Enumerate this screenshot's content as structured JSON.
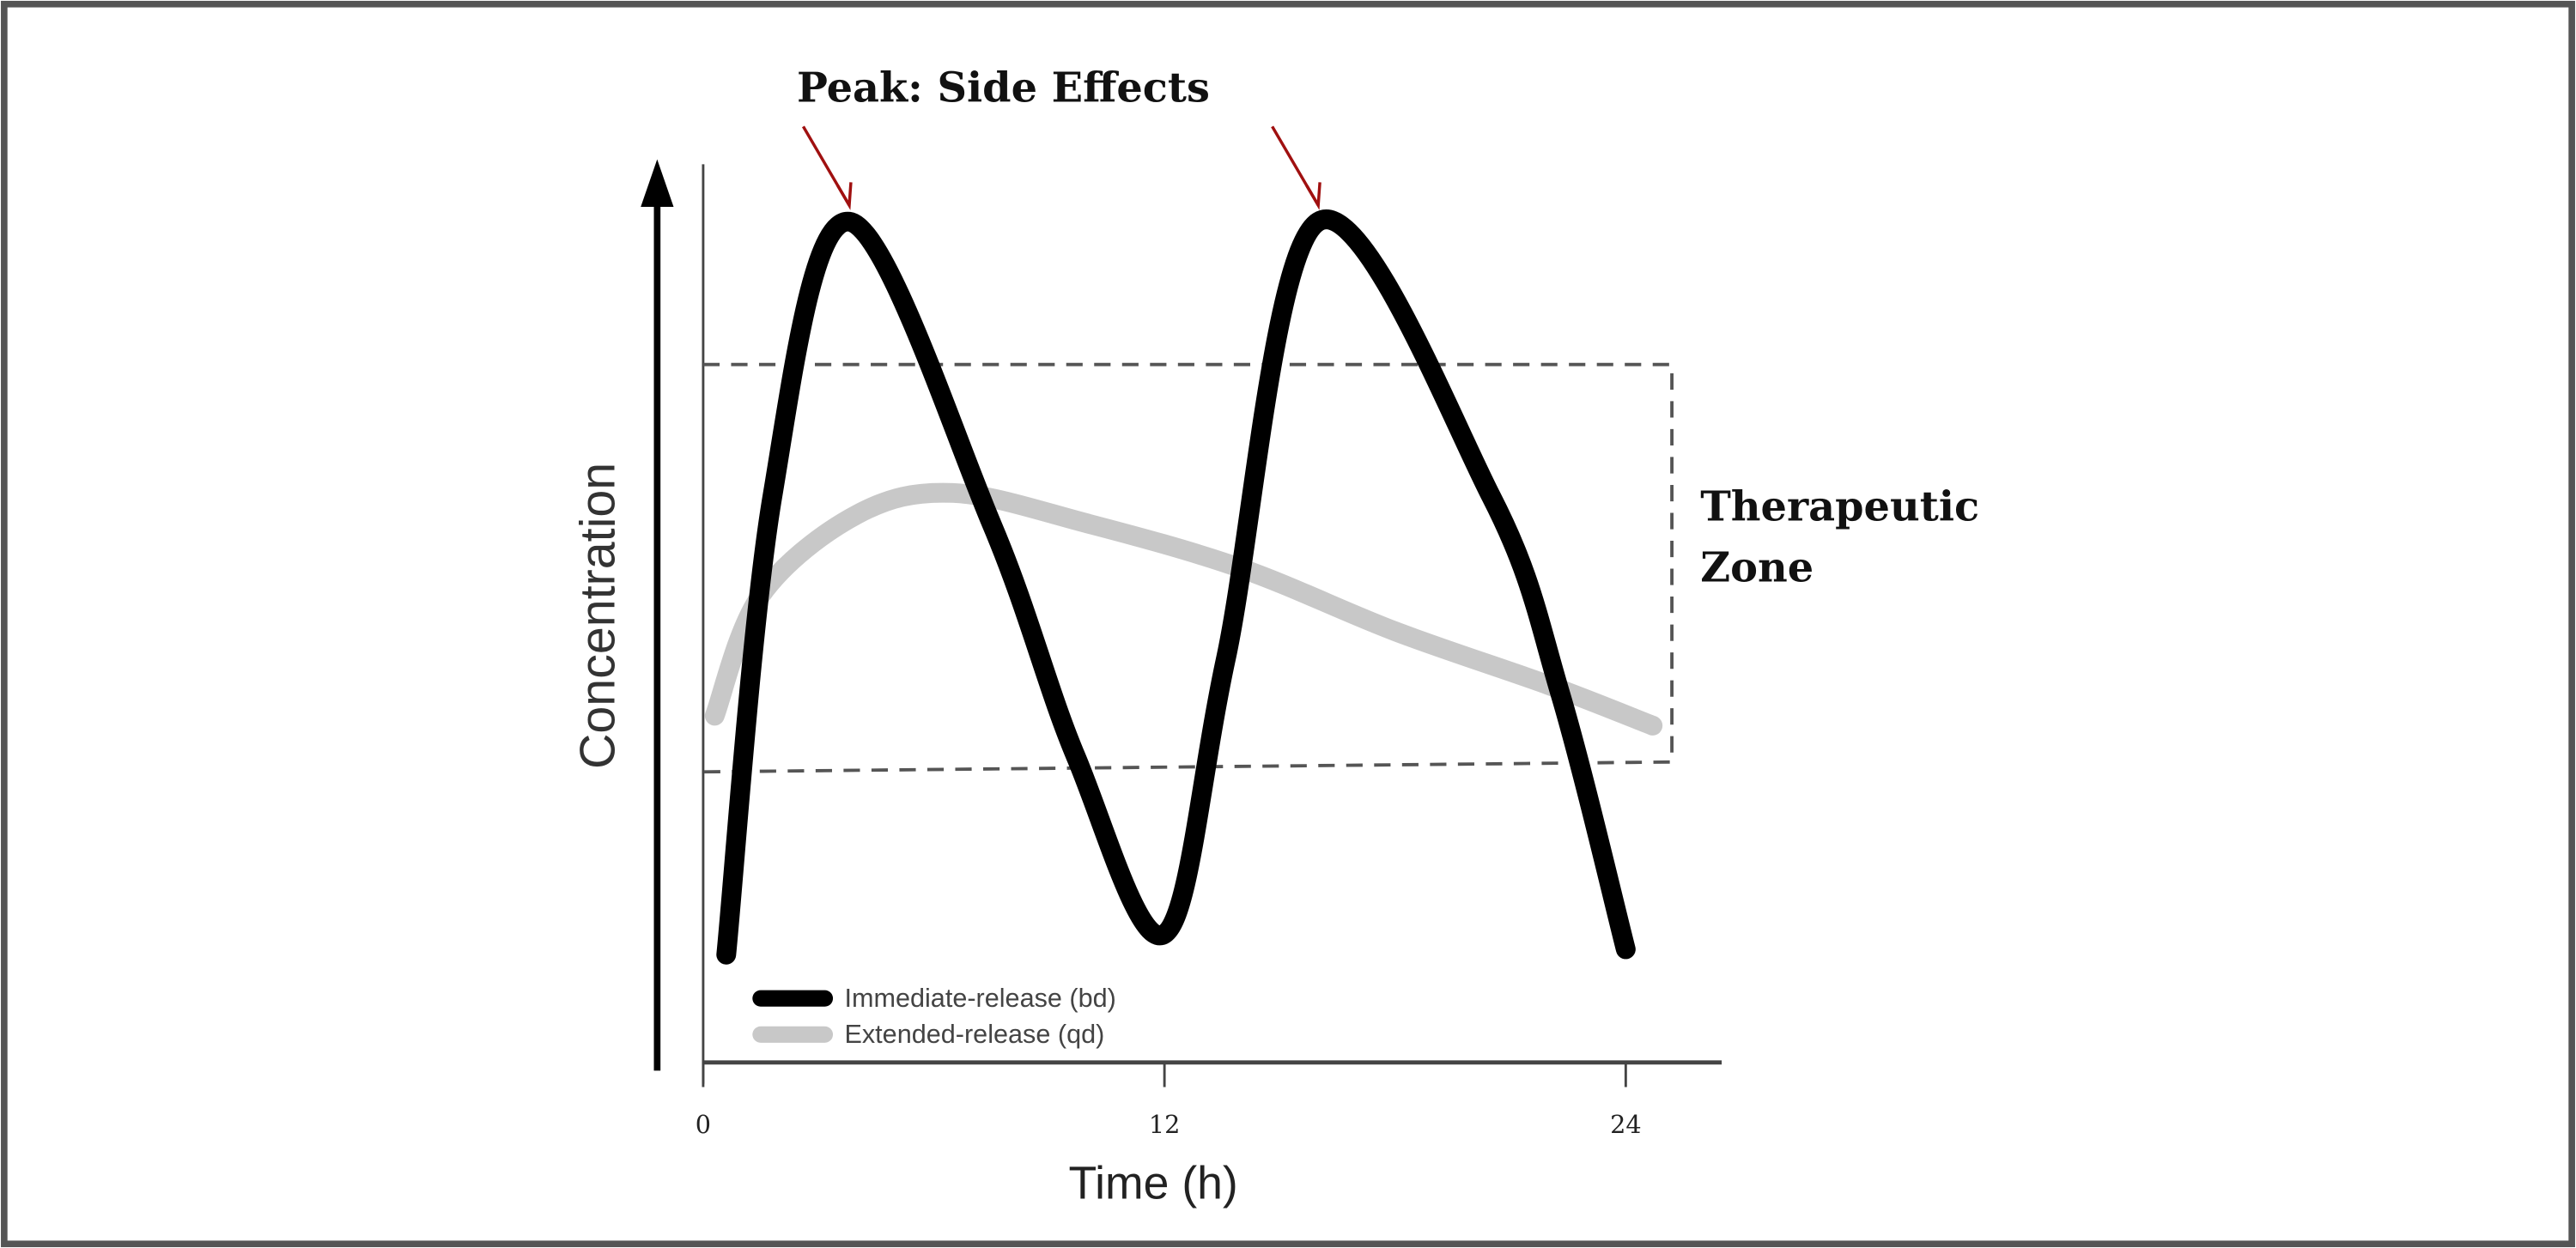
{
  "chart_data": {
    "type": "line",
    "title": "",
    "xlabel": "Time (h)",
    "ylabel": "Concentration",
    "x_ticks": [
      "0",
      "12",
      "24"
    ],
    "xlim": [
      0,
      26
    ],
    "ylim": [
      0,
      100
    ],
    "y_units_note": "",
    "grid": false,
    "legend_placement": "bottom-left",
    "series": [
      {
        "name": "Immediate-release (bd)",
        "color": "#000000",
        "x": [
          0.6,
          1.8,
          3.8,
          7.5,
          9.7,
          12,
          13.6,
          16,
          20.5,
          22.3,
          24
        ],
        "y": [
          12,
          63,
          93.6,
          60,
          34,
          14.3,
          45,
          93.6,
          63,
          41,
          12.6
        ]
      },
      {
        "name": "Extended-release (qd)",
        "color": "#c8c8c8",
        "x": [
          0.3,
          1.5,
          4,
          6.5,
          10,
          14,
          18,
          22,
          24.7
        ],
        "y": [
          38.6,
          52,
          61,
          63.4,
          60,
          55,
          48,
          42,
          37.5
        ]
      }
    ],
    "annotations": {
      "peak_label": "Peak: Side Effects",
      "peak_times": [
        3.8,
        16
      ],
      "peak_arrow_color": "#a01010",
      "zone_label_line1": "Therapeutic",
      "zone_label_line2": "Zone",
      "zone_range": [
        32.9,
        77.7
      ],
      "zone_x_end": 25.2
    }
  }
}
